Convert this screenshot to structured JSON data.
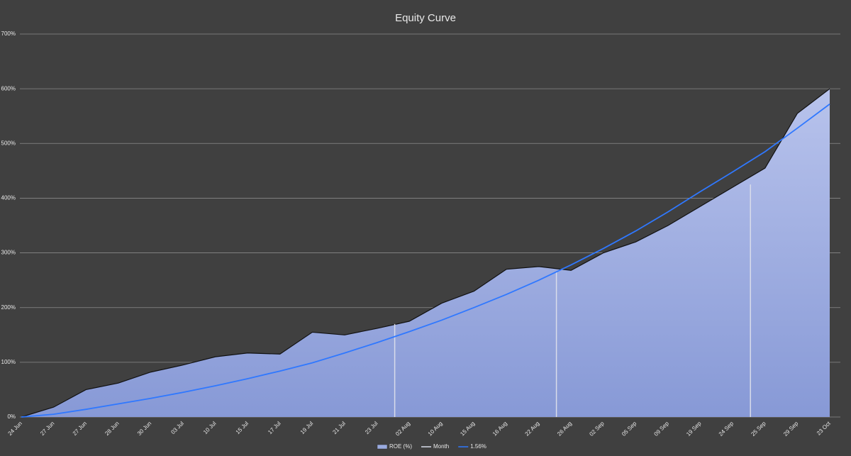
{
  "chart_data": {
    "type": "area",
    "title": "Equity Curve",
    "categories": [
      "24 Jun",
      "27 Jun",
      "27 Jun",
      "28 Jun",
      "30 Jun",
      "03 Jul",
      "10 Jul",
      "15 Jul",
      "17 Jul",
      "19 Jul",
      "21 Jul",
      "23 Jul",
      "02 Aug",
      "10 Aug",
      "15 Aug",
      "16 Aug",
      "22 Aug",
      "26 Aug",
      "02 Sep",
      "05 Sep",
      "09 Sep",
      "19 Sep",
      "24 Sep",
      "25 Sep",
      "29 Sep",
      "23 Oct"
    ],
    "series": [
      {
        "name": "ROE (%)",
        "color": "#9aabe0",
        "values": [
          0,
          18,
          50,
          62,
          82,
          95,
          110,
          117,
          115,
          155,
          150,
          162,
          175,
          208,
          230,
          270,
          275,
          268,
          300,
          320,
          350,
          385,
          420,
          455,
          555,
          600
        ]
      },
      {
        "name": "Month",
        "color": "#d9dcea",
        "values": [
          null,
          null,
          null,
          null,
          null,
          null,
          null,
          null,
          null,
          null,
          null,
          170,
          null,
          null,
          null,
          null,
          265,
          null,
          null,
          null,
          null,
          null,
          425,
          null,
          null,
          null
        ]
      },
      {
        "name": "1.56%",
        "color": "#2f78ff",
        "values": [
          0,
          5,
          14,
          24,
          34,
          45,
          57,
          70,
          84,
          99,
          117,
          136,
          156,
          177,
          200,
          224,
          250,
          278,
          308,
          340,
          375,
          412,
          448,
          485,
          528,
          572
        ]
      }
    ],
    "ylim": [
      0,
      700
    ],
    "yticks": [
      {
        "value": 0,
        "label": "0%"
      },
      {
        "value": 100,
        "label": "100%"
      },
      {
        "value": 200,
        "label": "200%"
      },
      {
        "value": 300,
        "label": "300%"
      },
      {
        "value": 400,
        "label": "400%"
      },
      {
        "value": 500,
        "label": "500%"
      },
      {
        "value": 600,
        "label": "600%"
      },
      {
        "value": 700,
        "label": "700%"
      }
    ],
    "grid": true,
    "legend": "bottom"
  }
}
